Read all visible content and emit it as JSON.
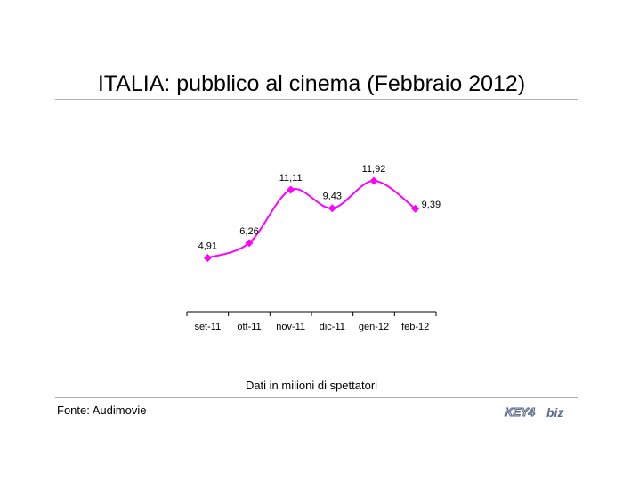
{
  "title": "ITALIA: pubblico al cinema (Febbraio 2012)",
  "note": "Dati in milioni di spettatori",
  "source": "Fonte: Audimovie",
  "logo": {
    "text_left": "KEY4",
    "text_right": "biz"
  },
  "colors": {
    "series": "#ff00ff",
    "axis": "#000000",
    "rule": "#b0b0b0",
    "logo": "#5a6a8a"
  },
  "chart_data": {
    "type": "line",
    "categories": [
      "set-11",
      "ott-11",
      "nov-11",
      "dic-11",
      "gen-12",
      "feb-12"
    ],
    "values": [
      4.91,
      6.26,
      11.11,
      9.43,
      11.92,
      9.39
    ],
    "data_labels": [
      "4,91",
      "6,26",
      "11,11",
      "9,43",
      "11,92",
      "9,39"
    ],
    "ylim": [
      0,
      15
    ],
    "smooth": true,
    "marker": "diamond",
    "grid": false,
    "legend": "none"
  }
}
